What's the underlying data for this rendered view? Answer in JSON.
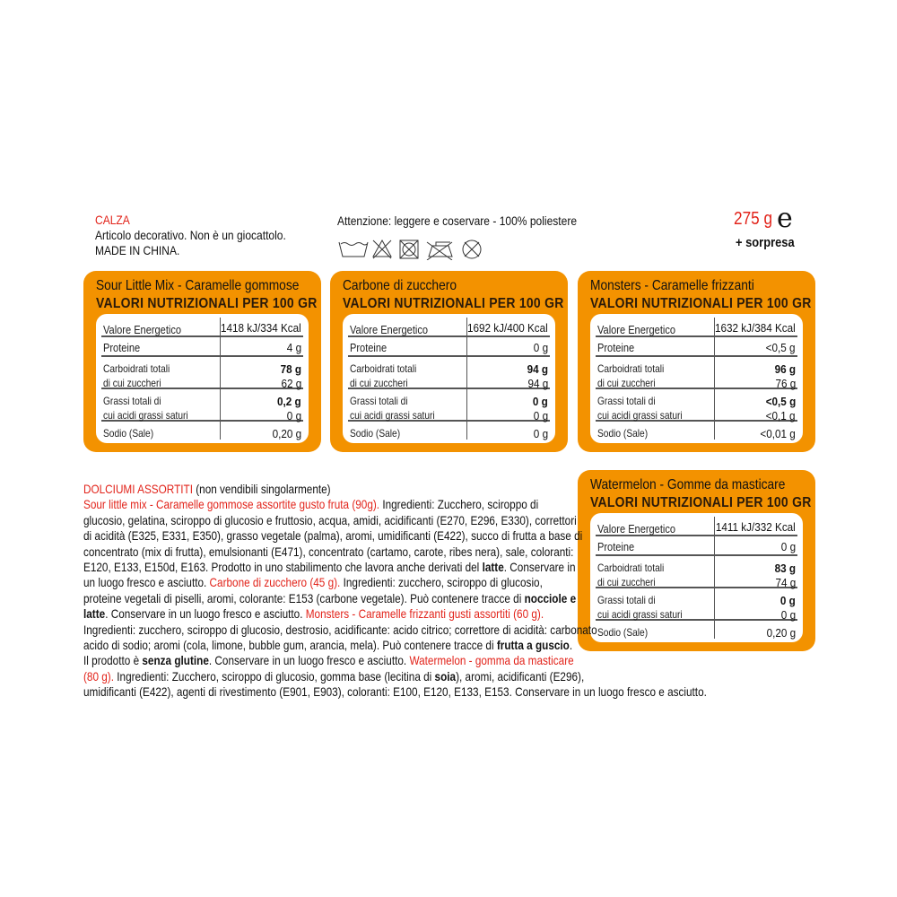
{
  "header": {
    "title": "CALZA",
    "line1": "Articolo decorativo. Non è un giocattolo.",
    "line2": "MADE IN CHINA.",
    "attention": "Attenzione: leggere e coservare - 100% poliestere",
    "care_icons": [
      "hand-wash-icon",
      "no-bleach-icon",
      "no-tumble-dry-icon",
      "no-iron-icon",
      "no-dry-clean-icon"
    ],
    "weight": "275 g",
    "estimated_mark": "e",
    "surprise": "+ sorpresa"
  },
  "colors": {
    "accent": "#f39200",
    "red": "#e2231a"
  },
  "nutrition_subtitle": "VALORI NUTRIZIONALI PER 100 GR",
  "labels": {
    "energy": "Valore Energetico",
    "protein": "Proteine",
    "carbs": "Carboidrati totali",
    "sugars": "di cui zuccheri",
    "fat": "Grassi totali di",
    "satfat": "cui acidi grassi saturi",
    "salt": "Sodio (Sale)"
  },
  "panels": [
    {
      "title": "Sour Little Mix - Caramelle gommose",
      "energy": "1418 kJ/334 Kcal",
      "protein": "4 g",
      "carbs": "78 g",
      "sugars": "62 g",
      "fat": "0,2 g",
      "satfat": "0 g",
      "salt": "0,20 g"
    },
    {
      "title": "Carbone di zucchero",
      "energy": "1692 kJ/400 Kcal",
      "protein": "0 g",
      "carbs": "94 g",
      "sugars": "94 g",
      "fat": "0 g",
      "satfat": "0 g",
      "salt": "0 g"
    },
    {
      "title": "Monsters - Caramelle frizzanti",
      "energy": "1632 kJ/384 Kcal",
      "protein": "<0,5 g",
      "carbs": "96 g",
      "sugars": "76 g",
      "fat": "<0,5 g",
      "satfat": "<0,1 g",
      "salt": "<0,01 g"
    },
    {
      "title": "Watermelon - Gomme da masticare",
      "energy": "1411 kJ/332 Kcal",
      "protein": "0 g",
      "carbs": "83 g",
      "sugars": "74 g",
      "fat": "0 g",
      "satfat": "0 g",
      "salt": "0,20 g"
    }
  ],
  "ingredients": {
    "lines": [
      [
        {
          "t": "DOLCIUMI ASSORTITI",
          "s": "red"
        },
        {
          "t": " (non vendibili singolarmente)",
          "s": ""
        }
      ],
      [
        {
          "t": "Sour little mix - Caramelle gommose assortite gusto fruta (90g).",
          "s": "red"
        },
        {
          "t": " Ingredienti: Zucchero, sciroppo di",
          "s": ""
        }
      ],
      [
        {
          "t": "glucosio, gelatina, sciroppo di glucosio e fruttosio, acqua, amidi, acidificanti (E270, E296, E330), correttori",
          "s": ""
        }
      ],
      [
        {
          "t": "di acidità (E325, E331, E350), grasso vegetale (palma), aromi, umidificanti (E422), succo di frutta a base di",
          "s": ""
        }
      ],
      [
        {
          "t": "concentrato (mix di frutta), emulsionanti (E471), concentrato (cartamo, carote, ribes nera), sale, coloranti:",
          "s": ""
        }
      ],
      [
        {
          "t": "E120, E133, E150d, E163. Prodotto in uno stabilimento che lavora anche derivati del ",
          "s": ""
        },
        {
          "t": "latte",
          "s": "b"
        },
        {
          "t": ". Conservare in",
          "s": ""
        }
      ],
      [
        {
          "t": "un luogo fresco e asciutto. ",
          "s": ""
        },
        {
          "t": "Carbone di zucchero (45 g).",
          "s": "red"
        },
        {
          "t": " Ingredienti: zucchero, sciroppo di glucosio,",
          "s": ""
        }
      ],
      [
        {
          "t": "proteine vegetali di piselli, aromi, colorante: E153 (carbone vegetale). Può contenere tracce di ",
          "s": ""
        },
        {
          "t": "nocciole e",
          "s": "b"
        }
      ],
      [
        {
          "t": "latte",
          "s": "b"
        },
        {
          "t": ". Conservare in un luogo fresco e asciutto. ",
          "s": ""
        },
        {
          "t": "Monsters - Caramelle frizzanti gusti assortiti (60 g).",
          "s": "red"
        }
      ],
      [
        {
          "t": "Ingredienti: zucchero, sciroppo di glucosio, destrosio, acidificante: acido citrico; correttore di acidità: carbonato",
          "s": ""
        }
      ],
      [
        {
          "t": "acido di sodio; aromi (cola, limone, bubble gum, arancia, mela). Può contenere tracce di ",
          "s": ""
        },
        {
          "t": "frutta a guscio",
          "s": "b"
        },
        {
          "t": ".",
          "s": ""
        }
      ],
      [
        {
          "t": "Il prodotto è ",
          "s": ""
        },
        {
          "t": "senza glutine",
          "s": "b"
        },
        {
          "t": ". Conservare in un luogo fresco e asciutto. ",
          "s": ""
        },
        {
          "t": "Watermelon - gomma da masticare",
          "s": "red"
        }
      ],
      [
        {
          "t": "(80 g).",
          "s": "red"
        },
        {
          "t": " Ingredienti: Zucchero, sciroppo di glucosio, gomma base (lecitina di ",
          "s": ""
        },
        {
          "t": "soia",
          "s": "b"
        },
        {
          "t": "), aromi, acidificanti (E296),",
          "s": ""
        }
      ],
      [
        {
          "t": "umidificanti (E422), agenti di rivestimento (E901, E903), coloranti: E100, E120, E133, E153. Conservare in un luogo fresco e asciutto.",
          "s": ""
        }
      ]
    ]
  }
}
